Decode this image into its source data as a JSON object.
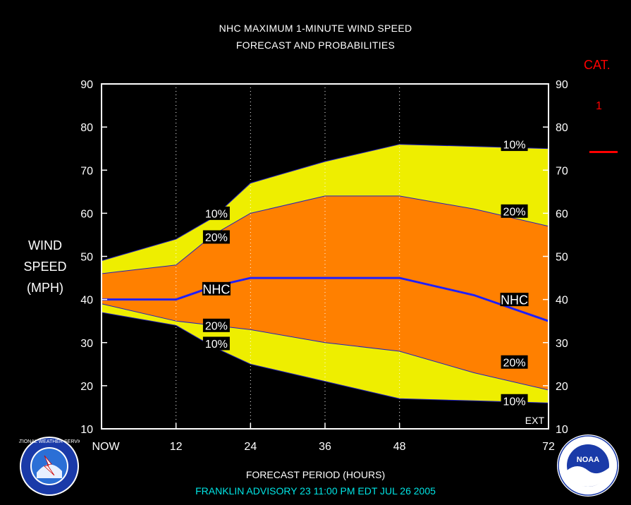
{
  "header": {
    "title_line1": "NHC MAXIMUM 1-MINUTE WIND SPEED",
    "title_line2": "FORECAST AND PROBABILITIES"
  },
  "y_axis_label": [
    "WIND",
    "SPEED",
    "(MPH)"
  ],
  "category": {
    "label": "CAT.",
    "value": "1",
    "color": "#ff0000"
  },
  "footer": {
    "xlabel": "FORECAST PERIOD (HOURS)",
    "advisory": "FRANKLIN   ADVISORY  23 11:00  PM  EDT  JUL  26  2005",
    "advisory_color": "#00e5e5"
  },
  "logos": {
    "nws_text": "NATIONAL WEATHER SERVICE",
    "noaa_text": "NOAA",
    "noaa_ring_text": "U.S. DEPARTMENT OF COMMERCE"
  },
  "chart_data": {
    "type": "area",
    "x_ticks": [
      0,
      12,
      24,
      36,
      48,
      72
    ],
    "x_tick_labels": [
      "NOW",
      "12",
      "24",
      "36",
      "48",
      "72"
    ],
    "y_ticks": [
      10,
      20,
      30,
      40,
      50,
      60,
      70,
      80,
      90
    ],
    "xlim": [
      0,
      72
    ],
    "ylim": [
      10,
      90
    ],
    "grid": "dotted vertical at 12, 24, 36, 48",
    "corner_label": "EXT",
    "colors": {
      "band10": "#eeee00",
      "band20": "#ff8000",
      "line": "#1f1fff",
      "axes": "#ffffff"
    },
    "upper10": {
      "x": [
        0,
        12,
        18,
        24,
        36,
        48,
        60,
        72
      ],
      "y": [
        49,
        54,
        59,
        67,
        72,
        76,
        75.5,
        75
      ]
    },
    "upper20": {
      "x": [
        0,
        12,
        18,
        24,
        36,
        48,
        60,
        72
      ],
      "y": [
        46,
        48,
        55,
        60,
        64,
        64,
        61,
        57
      ]
    },
    "nhc": {
      "x": [
        0,
        12,
        18,
        24,
        36,
        48,
        60,
        72
      ],
      "y": [
        40,
        40,
        43,
        45,
        45,
        45,
        41,
        35
      ]
    },
    "lower20": {
      "x": [
        0,
        12,
        18,
        24,
        36,
        48,
        60,
        72
      ],
      "y": [
        39,
        35,
        34,
        33,
        30,
        28,
        23,
        19
      ]
    },
    "lower10": {
      "x": [
        0,
        12,
        18,
        24,
        36,
        48,
        60,
        72
      ],
      "y": [
        37,
        34,
        29,
        25,
        21,
        17,
        16.5,
        16
      ]
    },
    "labels": [
      {
        "text": "10%",
        "x": 18.5,
        "y": 60
      },
      {
        "text": "20%",
        "x": 18.5,
        "y": 54.5
      },
      {
        "text": "NHC",
        "x": 18.5,
        "y": 42.5
      },
      {
        "text": "20%",
        "x": 18.5,
        "y": 34
      },
      {
        "text": "10%",
        "x": 18.5,
        "y": 29.8
      },
      {
        "text": "10%",
        "x": 66.5,
        "y": 76
      },
      {
        "text": "20%",
        "x": 66.5,
        "y": 60.5
      },
      {
        "text": "NHC",
        "x": 66.5,
        "y": 40
      },
      {
        "text": "20%",
        "x": 66.5,
        "y": 25.5
      },
      {
        "text": "10%",
        "x": 66.5,
        "y": 16.5
      }
    ]
  }
}
